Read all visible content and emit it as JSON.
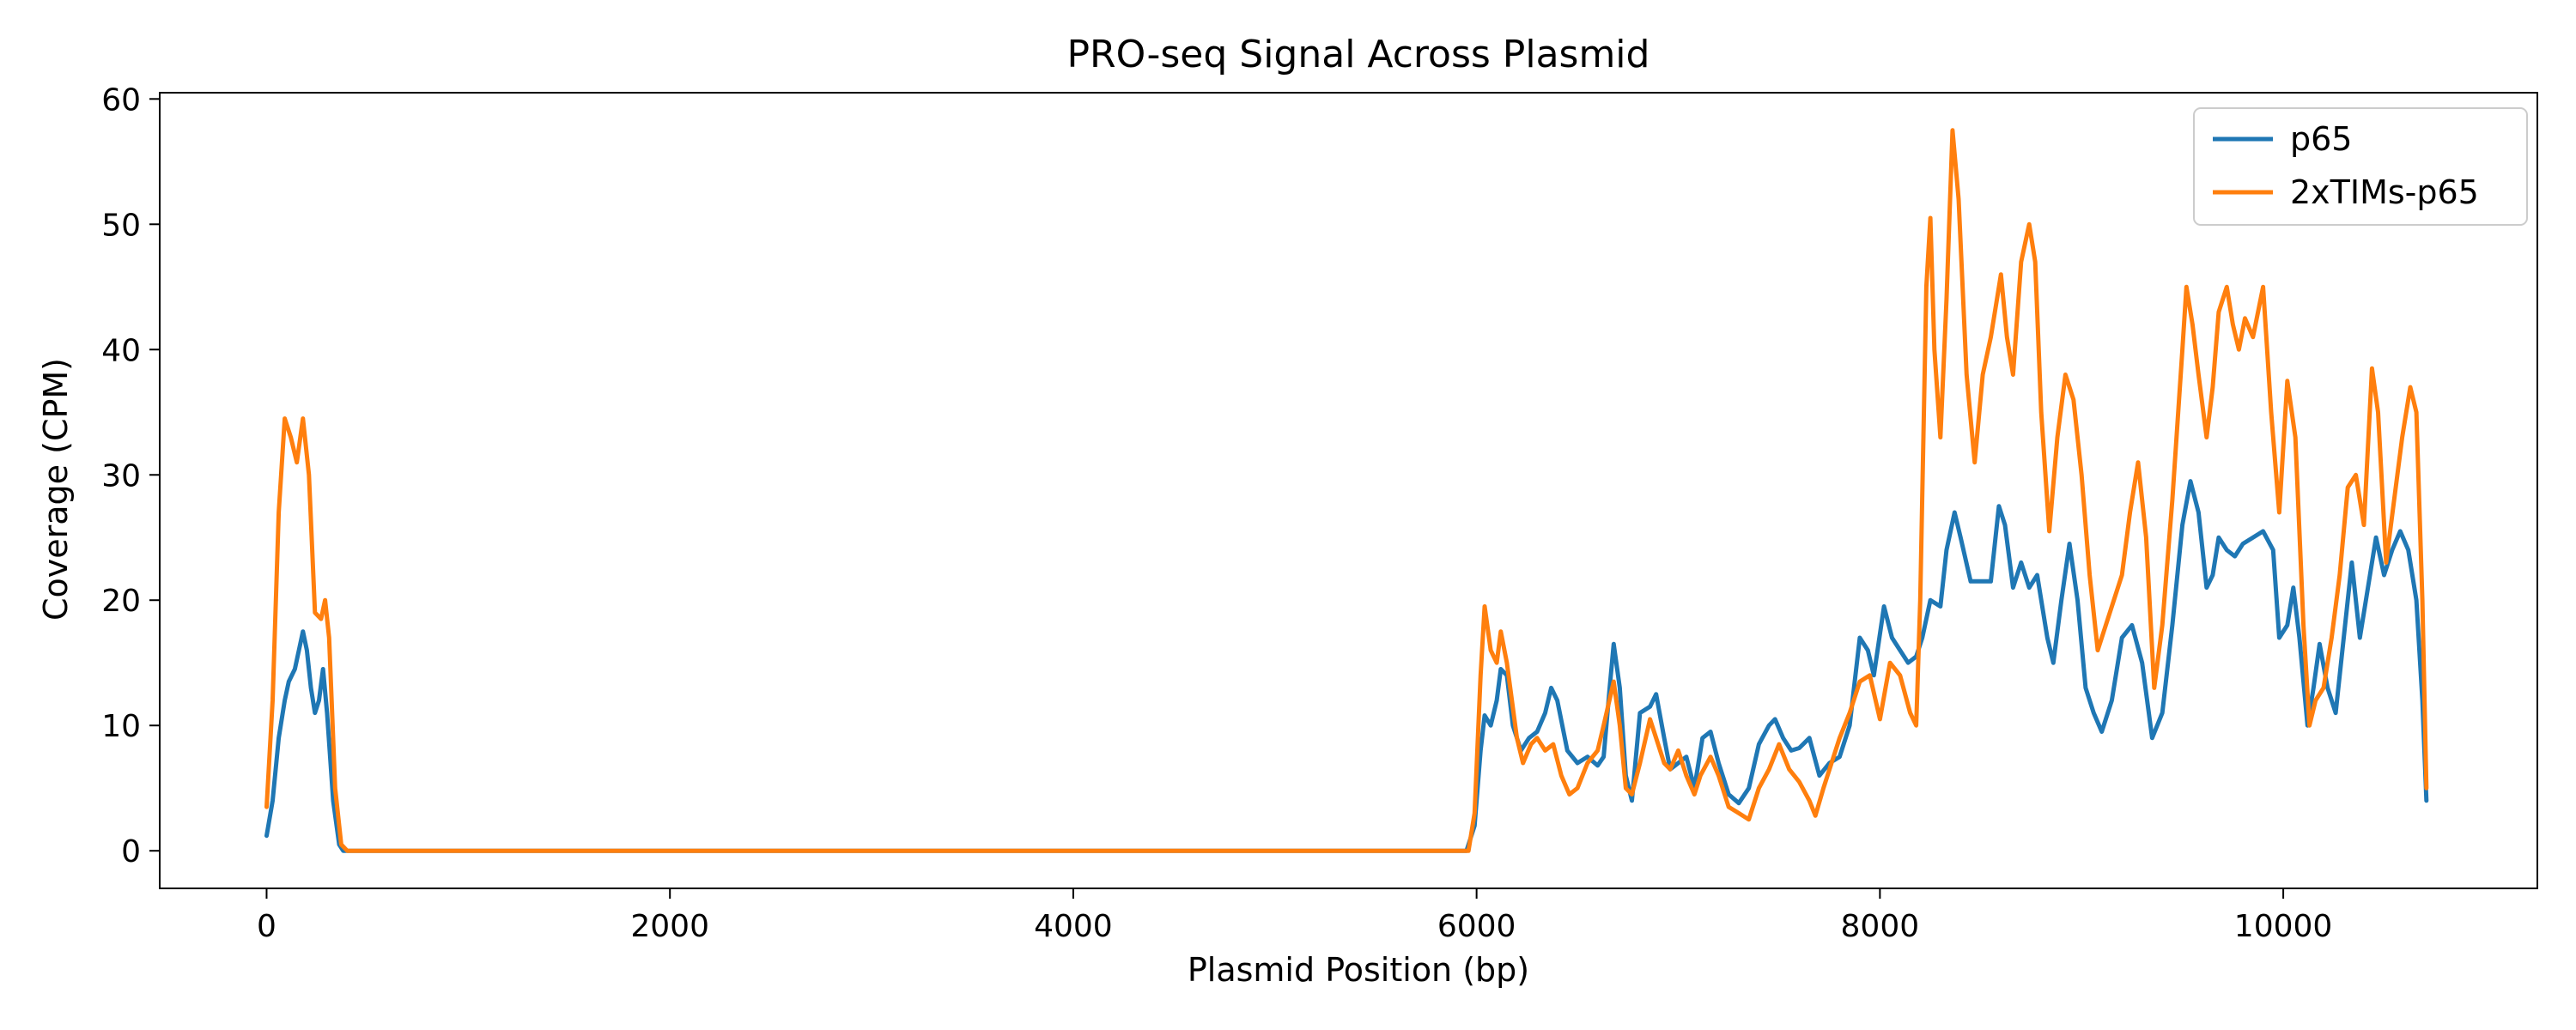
{
  "chart_data": {
    "type": "line",
    "title": "PRO-seq Signal Across Plasmid",
    "xlabel": "Plasmid Position (bp)",
    "ylabel": "Coverage (CPM)",
    "xlim": [
      -530,
      11260
    ],
    "ylim": [
      -3,
      60.5
    ],
    "xticks": [
      0,
      2000,
      4000,
      6000,
      8000,
      10000
    ],
    "yticks": [
      0,
      10,
      20,
      30,
      40,
      50,
      60
    ],
    "grid": false,
    "legend_position": "top-right",
    "series": [
      {
        "name": "p65",
        "color": "#1f77b4",
        "points": [
          [
            0,
            1.2
          ],
          [
            30,
            4
          ],
          [
            60,
            9
          ],
          [
            90,
            12
          ],
          [
            110,
            13.5
          ],
          [
            140,
            14.5
          ],
          [
            160,
            16
          ],
          [
            180,
            17.5
          ],
          [
            200,
            16
          ],
          [
            220,
            13
          ],
          [
            240,
            11
          ],
          [
            260,
            12
          ],
          [
            280,
            14.5
          ],
          [
            300,
            11
          ],
          [
            330,
            4
          ],
          [
            360,
            0.5
          ],
          [
            380,
            0
          ],
          [
            1000,
            0
          ],
          [
            2000,
            0
          ],
          [
            3000,
            0
          ],
          [
            4000,
            0
          ],
          [
            5000,
            0
          ],
          [
            5950,
            0
          ],
          [
            5990,
            2
          ],
          [
            6020,
            8
          ],
          [
            6040,
            10.8
          ],
          [
            6070,
            10
          ],
          [
            6100,
            12
          ],
          [
            6120,
            14.5
          ],
          [
            6150,
            14
          ],
          [
            6180,
            10
          ],
          [
            6220,
            8
          ],
          [
            6260,
            9
          ],
          [
            6300,
            9.5
          ],
          [
            6340,
            11
          ],
          [
            6370,
            13
          ],
          [
            6400,
            12
          ],
          [
            6450,
            8
          ],
          [
            6500,
            7
          ],
          [
            6550,
            7.5
          ],
          [
            6600,
            6.8
          ],
          [
            6630,
            7.5
          ],
          [
            6660,
            13
          ],
          [
            6680,
            16.5
          ],
          [
            6710,
            13
          ],
          [
            6740,
            6
          ],
          [
            6770,
            4
          ],
          [
            6810,
            11
          ],
          [
            6860,
            11.5
          ],
          [
            6890,
            12.5
          ],
          [
            6930,
            9
          ],
          [
            6960,
            6.5
          ],
          [
            7000,
            7
          ],
          [
            7040,
            7.5
          ],
          [
            7080,
            5
          ],
          [
            7120,
            9
          ],
          [
            7160,
            9.5
          ],
          [
            7200,
            7
          ],
          [
            7250,
            4.5
          ],
          [
            7300,
            3.8
          ],
          [
            7350,
            5
          ],
          [
            7400,
            8.5
          ],
          [
            7450,
            10
          ],
          [
            7480,
            10.5
          ],
          [
            7520,
            9
          ],
          [
            7560,
            8
          ],
          [
            7600,
            8.2
          ],
          [
            7650,
            9
          ],
          [
            7700,
            6
          ],
          [
            7750,
            7
          ],
          [
            7800,
            7.5
          ],
          [
            7850,
            10
          ],
          [
            7900,
            17
          ],
          [
            7940,
            16
          ],
          [
            7970,
            14
          ],
          [
            8020,
            19.5
          ],
          [
            8060,
            17
          ],
          [
            8100,
            16
          ],
          [
            8140,
            15
          ],
          [
            8180,
            15.5
          ],
          [
            8210,
            17
          ],
          [
            8250,
            20
          ],
          [
            8300,
            19.5
          ],
          [
            8330,
            24
          ],
          [
            8370,
            27
          ],
          [
            8400,
            25
          ],
          [
            8450,
            21.5
          ],
          [
            8500,
            21.5
          ],
          [
            8550,
            21.5
          ],
          [
            8590,
            27.5
          ],
          [
            8620,
            26
          ],
          [
            8660,
            21
          ],
          [
            8700,
            23
          ],
          [
            8740,
            21
          ],
          [
            8780,
            22
          ],
          [
            8830,
            17
          ],
          [
            8860,
            15
          ],
          [
            8900,
            20
          ],
          [
            8940,
            24.5
          ],
          [
            8980,
            20
          ],
          [
            9020,
            13
          ],
          [
            9060,
            11
          ],
          [
            9100,
            9.5
          ],
          [
            9150,
            12
          ],
          [
            9200,
            17
          ],
          [
            9250,
            18
          ],
          [
            9300,
            15
          ],
          [
            9350,
            9
          ],
          [
            9400,
            11
          ],
          [
            9450,
            18
          ],
          [
            9500,
            26
          ],
          [
            9540,
            29.5
          ],
          [
            9580,
            27
          ],
          [
            9620,
            21
          ],
          [
            9650,
            22
          ],
          [
            9680,
            25
          ],
          [
            9720,
            24
          ],
          [
            9760,
            23.5
          ],
          [
            9800,
            24.5
          ],
          [
            9850,
            25
          ],
          [
            9900,
            25.5
          ],
          [
            9950,
            24
          ],
          [
            9980,
            17
          ],
          [
            10020,
            18
          ],
          [
            10050,
            21
          ],
          [
            10080,
            17
          ],
          [
            10120,
            10
          ],
          [
            10150,
            13
          ],
          [
            10180,
            16.5
          ],
          [
            10220,
            13
          ],
          [
            10260,
            11
          ],
          [
            10300,
            17
          ],
          [
            10340,
            23
          ],
          [
            10380,
            17
          ],
          [
            10420,
            21
          ],
          [
            10460,
            25
          ],
          [
            10500,
            22
          ],
          [
            10540,
            24
          ],
          [
            10580,
            25.5
          ],
          [
            10620,
            24
          ],
          [
            10660,
            20
          ],
          [
            10690,
            12
          ],
          [
            10710,
            4
          ]
        ]
      },
      {
        "name": "2xTIMs-p65",
        "color": "#ff7f0e",
        "points": [
          [
            0,
            3.5
          ],
          [
            30,
            12
          ],
          [
            60,
            27
          ],
          [
            90,
            34.5
          ],
          [
            120,
            33
          ],
          [
            150,
            31
          ],
          [
            180,
            34.5
          ],
          [
            210,
            30
          ],
          [
            240,
            19
          ],
          [
            270,
            18.5
          ],
          [
            290,
            20
          ],
          [
            310,
            17
          ],
          [
            340,
            5
          ],
          [
            370,
            0.5
          ],
          [
            400,
            0
          ],
          [
            1000,
            0
          ],
          [
            2000,
            0
          ],
          [
            3000,
            0
          ],
          [
            4000,
            0
          ],
          [
            5000,
            0
          ],
          [
            5960,
            0
          ],
          [
            5990,
            3
          ],
          [
            6020,
            14
          ],
          [
            6040,
            19.5
          ],
          [
            6070,
            16
          ],
          [
            6100,
            15
          ],
          [
            6120,
            17.5
          ],
          [
            6150,
            15
          ],
          [
            6200,
            9
          ],
          [
            6230,
            7
          ],
          [
            6270,
            8.5
          ],
          [
            6300,
            9
          ],
          [
            6340,
            8
          ],
          [
            6380,
            8.5
          ],
          [
            6420,
            6
          ],
          [
            6460,
            4.5
          ],
          [
            6500,
            5
          ],
          [
            6550,
            7
          ],
          [
            6600,
            8
          ],
          [
            6630,
            10
          ],
          [
            6680,
            13.5
          ],
          [
            6710,
            10
          ],
          [
            6740,
            5
          ],
          [
            6770,
            4.5
          ],
          [
            6810,
            7
          ],
          [
            6860,
            10.5
          ],
          [
            6890,
            9
          ],
          [
            6930,
            7
          ],
          [
            6960,
            6.5
          ],
          [
            7000,
            8
          ],
          [
            7040,
            6
          ],
          [
            7080,
            4.5
          ],
          [
            7110,
            6
          ],
          [
            7160,
            7.5
          ],
          [
            7200,
            6
          ],
          [
            7250,
            3.5
          ],
          [
            7300,
            3
          ],
          [
            7350,
            2.5
          ],
          [
            7400,
            5
          ],
          [
            7450,
            6.5
          ],
          [
            7500,
            8.5
          ],
          [
            7550,
            6.5
          ],
          [
            7600,
            5.5
          ],
          [
            7650,
            4
          ],
          [
            7680,
            2.8
          ],
          [
            7720,
            5
          ],
          [
            7760,
            7
          ],
          [
            7800,
            9
          ],
          [
            7850,
            11
          ],
          [
            7900,
            13.5
          ],
          [
            7950,
            14
          ],
          [
            8000,
            10.5
          ],
          [
            8050,
            15
          ],
          [
            8100,
            14
          ],
          [
            8150,
            11
          ],
          [
            8180,
            10
          ],
          [
            8200,
            20
          ],
          [
            8230,
            45
          ],
          [
            8250,
            50.5
          ],
          [
            8270,
            40
          ],
          [
            8300,
            33
          ],
          [
            8330,
            44
          ],
          [
            8360,
            57.5
          ],
          [
            8390,
            52
          ],
          [
            8430,
            38
          ],
          [
            8470,
            31
          ],
          [
            8510,
            38
          ],
          [
            8550,
            41
          ],
          [
            8580,
            44
          ],
          [
            8600,
            46
          ],
          [
            8630,
            41
          ],
          [
            8660,
            38
          ],
          [
            8700,
            47
          ],
          [
            8740,
            50
          ],
          [
            8770,
            47
          ],
          [
            8800,
            35
          ],
          [
            8840,
            25.5
          ],
          [
            8880,
            33
          ],
          [
            8920,
            38
          ],
          [
            8960,
            36
          ],
          [
            9000,
            30
          ],
          [
            9040,
            22
          ],
          [
            9080,
            16
          ],
          [
            9120,
            18
          ],
          [
            9160,
            20
          ],
          [
            9200,
            22
          ],
          [
            9240,
            27
          ],
          [
            9280,
            31
          ],
          [
            9320,
            25
          ],
          [
            9360,
            13
          ],
          [
            9400,
            18
          ],
          [
            9450,
            28
          ],
          [
            9500,
            40
          ],
          [
            9520,
            45
          ],
          [
            9550,
            42
          ],
          [
            9580,
            38
          ],
          [
            9620,
            33
          ],
          [
            9650,
            37
          ],
          [
            9680,
            43
          ],
          [
            9720,
            45
          ],
          [
            9750,
            42
          ],
          [
            9780,
            40
          ],
          [
            9810,
            42.5
          ],
          [
            9850,
            41
          ],
          [
            9900,
            45
          ],
          [
            9940,
            35
          ],
          [
            9980,
            27
          ],
          [
            10020,
            37.5
          ],
          [
            10060,
            33
          ],
          [
            10100,
            18
          ],
          [
            10130,
            10
          ],
          [
            10160,
            12
          ],
          [
            10200,
            13
          ],
          [
            10240,
            17
          ],
          [
            10280,
            22
          ],
          [
            10320,
            29
          ],
          [
            10360,
            30
          ],
          [
            10400,
            26
          ],
          [
            10440,
            38.5
          ],
          [
            10470,
            35
          ],
          [
            10510,
            23
          ],
          [
            10550,
            28
          ],
          [
            10590,
            33
          ],
          [
            10630,
            37
          ],
          [
            10660,
            35
          ],
          [
            10690,
            20
          ],
          [
            10710,
            5
          ]
        ]
      }
    ]
  }
}
